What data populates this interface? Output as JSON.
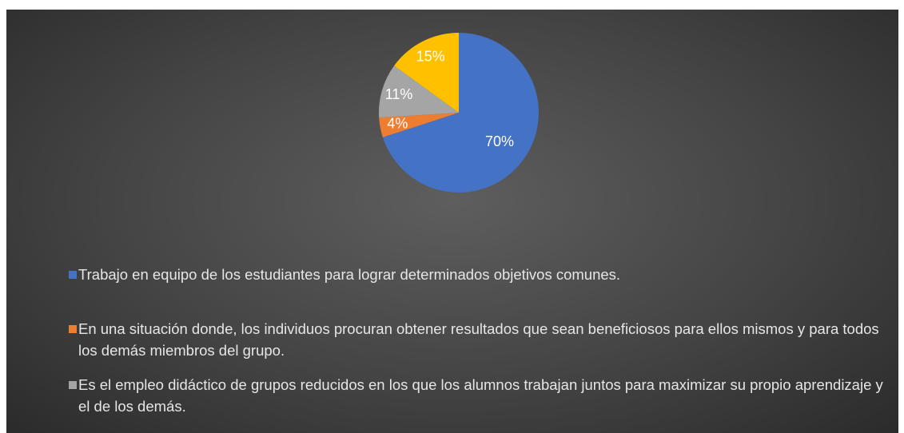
{
  "chart_data": {
    "type": "pie",
    "categories": [
      "Trabajo en equipo de los estudiantes para lograr determinados objetivos comunes.",
      "En una situación donde, los individuos procuran obtener resultados que sean beneficiosos para ellos mismos y para todos los demás miembros del grupo.",
      "Es el empleo didáctico de grupos reducidos en los que los alumnos trabajan juntos para maximizar su propio aprendizaje y el de los demás.",
      null
    ],
    "values": [
      70,
      4,
      11,
      15
    ],
    "value_labels": [
      "70%",
      "4%",
      "11%",
      "15%"
    ],
    "colors": [
      "#4472c4",
      "#ed7d31",
      "#a5a5a5",
      "#ffc000"
    ],
    "legend": "bottom"
  }
}
